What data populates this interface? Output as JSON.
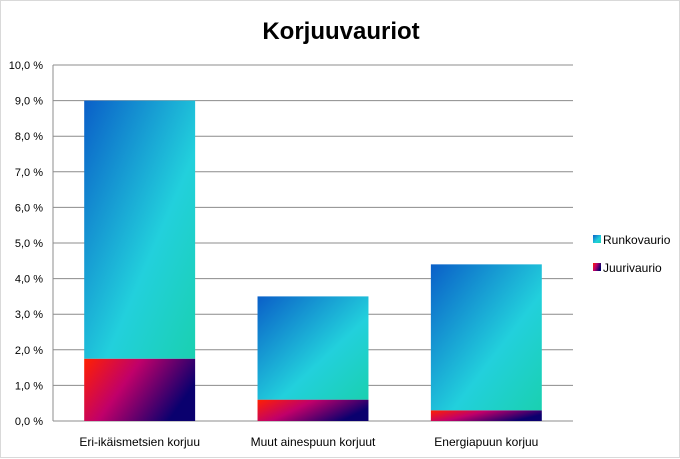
{
  "chart_data": {
    "type": "bar",
    "stacked": true,
    "title": "Korjuuvauriot",
    "categories": [
      "Eri-ikäismetsien korjuu",
      "Muut ainespuun korjuut",
      "Energiapuun korjuu"
    ],
    "series": [
      {
        "name": "Juurivaurio",
        "values": [
          1.75,
          0.6,
          0.3
        ]
      },
      {
        "name": "Runkovaurio",
        "values": [
          7.25,
          2.9,
          4.1
        ]
      }
    ],
    "yticks": [
      "0,0 %",
      "1,0 %",
      "2,0 %",
      "3,0 %",
      "4,0 %",
      "5,0 %",
      "6,0 %",
      "7,0 %",
      "8,0 %",
      "9,0 %",
      "10,0 %"
    ],
    "ylim": [
      0,
      10
    ],
    "grid": true,
    "legend": {
      "position": "right",
      "order": [
        "Runkovaurio",
        "Juurivaurio"
      ]
    },
    "colors": {
      "Runkovaurio": [
        "#0a5fc8",
        "#22d0dc",
        "#1ad0b0"
      ],
      "Juurivaurio": [
        "#ff2000",
        "#c0006a",
        "#0a006e"
      ],
      "grid": "#8c8c8c"
    }
  }
}
